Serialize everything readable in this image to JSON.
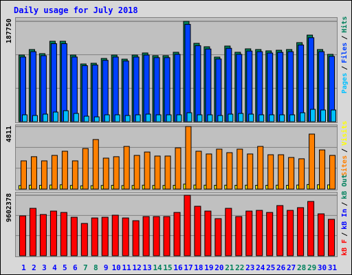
{
  "legend_separator": "/",
  "chart_data": [
    {
      "type": "bar",
      "title": "Daily usage for July 2018",
      "categories": [
        "1",
        "2",
        "3",
        "4",
        "5",
        "6",
        "7",
        "8",
        "9",
        "10",
        "11",
        "12",
        "13",
        "14",
        "15",
        "16",
        "17",
        "18",
        "19",
        "20",
        "21",
        "22",
        "23",
        "24",
        "25",
        "26",
        "27",
        "28",
        "29",
        "30",
        "31"
      ],
      "category_colors": [
        "#0000ff",
        "#0000ff",
        "#0000ff",
        "#0000ff",
        "#0000ff",
        "#0000ff",
        "#00805c",
        "#00805c",
        "#0000ff",
        "#0000ff",
        "#0000ff",
        "#0000ff",
        "#0000ff",
        "#00805c",
        "#00805c",
        "#0000ff",
        "#0000ff",
        "#0000ff",
        "#0000ff",
        "#0000ff",
        "#00805c",
        "#00805c",
        "#0000ff",
        "#0000ff",
        "#0000ff",
        "#0000ff",
        "#0000ff",
        "#00805c",
        "#00805c",
        "#0000ff",
        "#0000ff"
      ],
      "ylim": [
        0,
        187750
      ],
      "yticks": [
        187750
      ],
      "series": [
        {
          "name": "Hits",
          "color": "#00805c",
          "values": [
            124700,
            135000,
            127300,
            150500,
            150500,
            124700,
            108000,
            109300,
            118300,
            124700,
            117000,
            124700,
            128600,
            123500,
            123500,
            129900,
            187750,
            146600,
            140200,
            120900,
            141500,
            129900,
            136300,
            135000,
            132500,
            133700,
            135000,
            147900,
            162000,
            135000,
            126000
          ]
        },
        {
          "name": "Files",
          "color": "#0040ff",
          "values": [
            121000,
            131000,
            123500,
            146000,
            146000,
            121000,
            104800,
            106000,
            114800,
            121000,
            113500,
            121000,
            124700,
            119800,
            119800,
            126000,
            182100,
            142200,
            136000,
            117300,
            137300,
            126000,
            132200,
            131000,
            128500,
            129700,
            131000,
            143500,
            157100,
            131000,
            122200
          ]
        },
        {
          "name": "Pages",
          "color": "#00c0ff",
          "values": [
            12860,
            11570,
            14150,
            18000,
            20580,
            15430,
            10290,
            9000,
            12860,
            12860,
            11570,
            12860,
            14150,
            12860,
            12860,
            12860,
            16720,
            12860,
            12860,
            11570,
            14150,
            15430,
            14150,
            12860,
            12860,
            12860,
            12860,
            16720,
            23150,
            21860,
            21860
          ]
        }
      ]
    },
    {
      "type": "bar",
      "ylim": [
        0,
        4811
      ],
      "yticks": [
        4811
      ],
      "series": [
        {
          "name": "Visits",
          "color": "#ffff00",
          "values": [
            270,
            300,
            290,
            310,
            330,
            280,
            250,
            260,
            280,
            290,
            270,
            280,
            300,
            280,
            280,
            290,
            380,
            310,
            300,
            290,
            300,
            290,
            300,
            290,
            290,
            300,
            290,
            310,
            350,
            330,
            320
          ]
        },
        {
          "name": "Sites",
          "color": "#ff8000",
          "values": [
            2170,
            2490,
            2170,
            2590,
            2910,
            2170,
            3120,
            3810,
            2380,
            2490,
            3280,
            2590,
            2850,
            2540,
            2540,
            3170,
            4811,
            2910,
            2700,
            3070,
            2800,
            3070,
            2700,
            3280,
            2640,
            2640,
            2430,
            2330,
            4230,
            3010,
            2590
          ]
        }
      ]
    },
    {
      "type": "bar",
      "ylim": [
        0,
        9602378
      ],
      "yticks": [
        9602378
      ],
      "series": [
        {
          "name": "kB F",
          "color": "#ff0000",
          "values": [
            6329000,
            7529000,
            6547000,
            7093000,
            6874000,
            6111000,
            5129000,
            6001000,
            6111000,
            6438000,
            6001000,
            5565000,
            6220000,
            6220000,
            6220000,
            6874000,
            9602378,
            7856000,
            7093000,
            5892000,
            7529000,
            6220000,
            7093000,
            7202000,
            6874000,
            7966000,
            7202000,
            7638000,
            8620000,
            6656000,
            5783000
          ]
        }
      ],
      "legend_extra": [
        {
          "name": "kB In",
          "color": "#0000ff"
        },
        {
          "name": "kB Out",
          "color": "#00805c"
        }
      ]
    }
  ]
}
